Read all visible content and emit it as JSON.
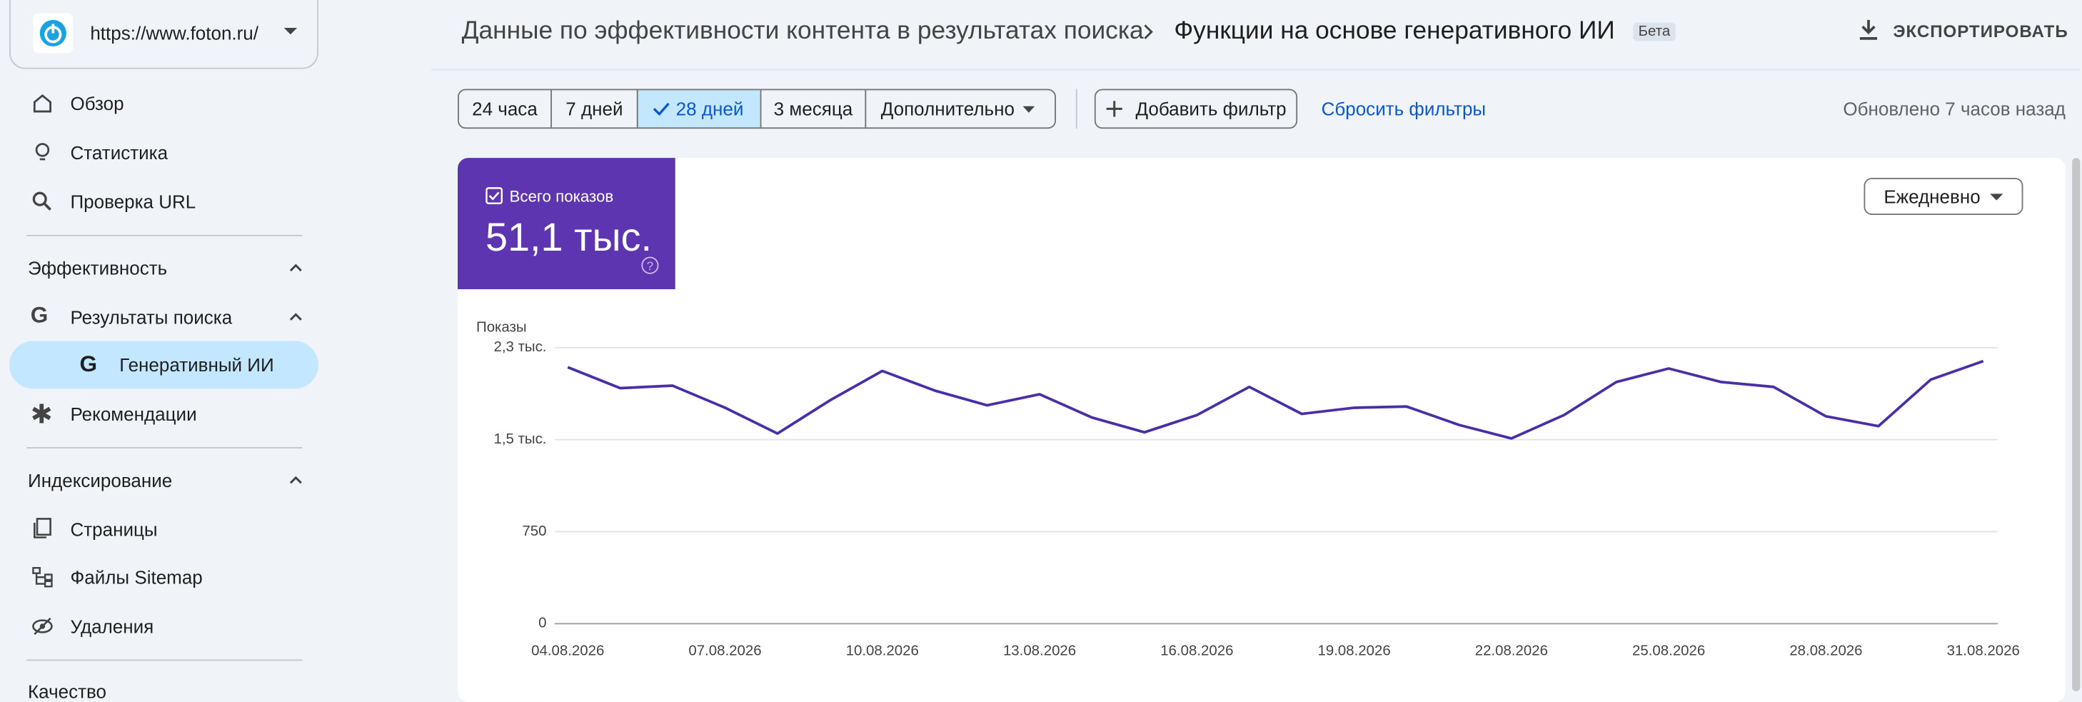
{
  "sidebar": {
    "site": "https://www.foton.ru/",
    "items": [
      "Обзор",
      "Статистика",
      "Проверка URL"
    ],
    "performance": {
      "title": "Эффективность",
      "search": "Результаты поиска",
      "generative": "Генеративный ИИ",
      "recommendations": "Рекомендации"
    },
    "indexing": {
      "title": "Индексирование",
      "items": [
        "Страницы",
        "Файлы Sitemap",
        "Удаления"
      ]
    },
    "quality": "Качество"
  },
  "header": {
    "breadcrumb": "Данные по эффективности контента в результатах поиска",
    "current": "Функции на основе генеративного ИИ",
    "badge": "Бета",
    "export": "ЭКСПОРТИРОВАТЬ"
  },
  "toolbar": {
    "ranges": [
      "24 часа",
      "7 дней",
      "28 дней",
      "3 месяца"
    ],
    "more": "Дополнительно",
    "add_filter": "Добавить фильтр",
    "reset": "Сбросить фильтры",
    "updated": "Обновлено 7 часов назад"
  },
  "card": {
    "metric_value": "51,1 тыс.",
    "granularity": "Ежедневно"
  },
  "chart_data": {
    "type": "line",
    "y_label": "Показы",
    "categories": [
      "04.08.2026",
      null,
      null,
      "07.08.2026",
      null,
      null,
      "10.08.2026",
      null,
      null,
      "13.08.2026",
      null,
      null,
      "16.08.2026",
      null,
      null,
      "19.08.2026",
      null,
      null,
      "22.08.2026",
      null,
      null,
      "25.08.2026",
      null,
      null,
      "28.08.2026",
      null,
      null,
      "31.08.2026"
    ],
    "series": [
      {
        "name": "Всего показов",
        "color": "#4a2ea5",
        "values": [
          2090,
          1920,
          1940,
          1760,
          1550,
          1820,
          2060,
          1900,
          1780,
          1870,
          1680,
          1560,
          1700,
          1930,
          1710,
          1760,
          1770,
          1620,
          1510,
          1700,
          1970,
          2080,
          1970,
          1930,
          1690,
          1610,
          1990,
          2140
        ]
      }
    ],
    "ylim": [
      0,
      2250
    ],
    "yticks": [
      0,
      750,
      {
        "value": 1500,
        "label": "1,5 тыс."
      },
      {
        "value": 2250,
        "label": "2,3 тыс."
      }
    ],
    "grid": true
  }
}
